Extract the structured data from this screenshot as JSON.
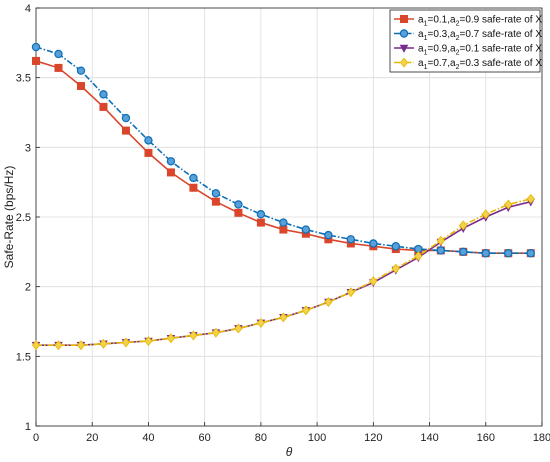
{
  "chart_data": {
    "type": "line",
    "xlabel": "θ",
    "ylabel": "Safe-Rate (bps/Hz)",
    "xlim": [
      0,
      180
    ],
    "ylim": [
      1,
      4
    ],
    "xticks": [
      "0",
      "20",
      "40",
      "60",
      "80",
      "100",
      "120",
      "140",
      "160",
      "180"
    ],
    "yticks": [
      "1",
      "1.5",
      "2",
      "2.5",
      "3",
      "3.5",
      "4"
    ],
    "grid": true,
    "legend_position": "top-right",
    "x": [
      0,
      8,
      16,
      24,
      32,
      40,
      48,
      56,
      64,
      72,
      80,
      88,
      96,
      104,
      112,
      120,
      128,
      136,
      144,
      152,
      160,
      168,
      176
    ],
    "series": [
      {
        "legend": {
          "a1_val": "0.1",
          "a2_val": "0.9"
        },
        "color": "#d9462c",
        "marker": "square",
        "dash": "solid",
        "values": [
          3.62,
          3.57,
          3.44,
          3.29,
          3.12,
          2.96,
          2.82,
          2.71,
          2.61,
          2.53,
          2.46,
          2.41,
          2.38,
          2.34,
          2.31,
          2.29,
          2.27,
          2.26,
          2.26,
          2.25,
          2.24,
          2.24,
          2.24
        ]
      },
      {
        "legend": {
          "a1_val": "0.3",
          "a2_val": "0.7"
        },
        "color": "#0b6fb8",
        "marker": "circle",
        "dash": "dashdot",
        "values": [
          3.72,
          3.67,
          3.55,
          3.38,
          3.21,
          3.05,
          2.9,
          2.78,
          2.67,
          2.59,
          2.52,
          2.46,
          2.41,
          2.37,
          2.34,
          2.31,
          2.29,
          2.27,
          2.26,
          2.25,
          2.24,
          2.24,
          2.24
        ]
      },
      {
        "legend": {
          "a1_val": "0.9",
          "a2_val": "0.1"
        },
        "color": "#7a2a8c",
        "marker": "triangle-down",
        "dash": "solid",
        "values": [
          1.58,
          1.58,
          1.58,
          1.59,
          1.6,
          1.61,
          1.63,
          1.65,
          1.67,
          1.7,
          1.74,
          1.78,
          1.83,
          1.89,
          1.96,
          2.03,
          2.12,
          2.21,
          2.32,
          2.42,
          2.5,
          2.57,
          2.61
        ]
      },
      {
        "legend": {
          "a1_val": "0.7",
          "a2_val": "0.3"
        },
        "color": "#e6b800",
        "marker": "diamond",
        "dash": "dashdot",
        "values": [
          1.58,
          1.58,
          1.58,
          1.59,
          1.6,
          1.61,
          1.63,
          1.65,
          1.67,
          1.7,
          1.74,
          1.78,
          1.83,
          1.89,
          1.96,
          2.04,
          2.13,
          2.22,
          2.33,
          2.44,
          2.52,
          2.59,
          2.63
        ]
      }
    ],
    "legend_template": {
      "prefix": "a",
      "sub1": "1",
      "sub2": "2",
      "eq": "=",
      "sep": ",",
      "suffix": " safe-rate of X"
    }
  }
}
